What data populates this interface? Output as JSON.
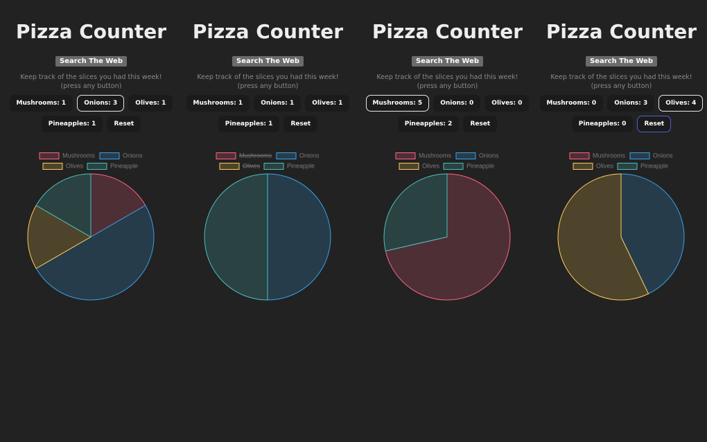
{
  "panels": [
    {
      "title": "Pizza Counter",
      "search_button": "Search The Web",
      "description": "Keep track of the slices you had this week! (press any button)",
      "buttons": [
        "Mushrooms: 1",
        "Onions: 3",
        "Olives: 1",
        "Pineapples: 1"
      ],
      "reset_button": "Reset",
      "chart": {
        "type": "pie",
        "categories": [
          "Mushrooms",
          "Onions",
          "Olives",
          "Pineapple"
        ],
        "values": [
          1,
          3,
          1,
          1
        ],
        "colors": [
          "#ff6384",
          "#36a2eb",
          "#ffcd56",
          "#4bc0c0"
        ],
        "hidden": [
          false,
          false,
          false,
          false
        ]
      }
    },
    {
      "title": "Pizza Counter",
      "search_button": "Search The Web",
      "description": "Keep track of the slices you had this week! (press any button)",
      "buttons": [
        "Mushrooms: 1",
        "Onions: 1",
        "Olives: 1",
        "Pineapples: 1"
      ],
      "reset_button": "Reset",
      "chart": {
        "type": "pie",
        "categories": [
          "Mushrooms",
          "Onions",
          "Olives",
          "Pineapple"
        ],
        "values": [
          1,
          1,
          1,
          1
        ],
        "colors": [
          "#ff6384",
          "#36a2eb",
          "#ffcd56",
          "#4bc0c0"
        ],
        "hidden": [
          true,
          false,
          true,
          false
        ]
      }
    },
    {
      "title": "Pizza Counter",
      "search_button": "Search The Web",
      "description": "Keep track of the slices you had this week! (press any button)",
      "buttons": [
        "Mushrooms: 5",
        "Onions: 0",
        "Olives: 0",
        "Pineapples: 2"
      ],
      "reset_button": "Reset",
      "chart": {
        "type": "pie",
        "categories": [
          "Mushrooms",
          "Onions",
          "Olives",
          "Pineapple"
        ],
        "values": [
          5,
          0,
          0,
          2
        ],
        "colors": [
          "#ff6384",
          "#36a2eb",
          "#ffcd56",
          "#4bc0c0"
        ],
        "hidden": [
          false,
          false,
          false,
          false
        ]
      }
    },
    {
      "title": "Pizza Counter",
      "search_button": "Search The Web",
      "description": "Keep track of the slices you had this week! (press any button)",
      "buttons": [
        "Mushrooms: 0",
        "Onions: 3",
        "Olives: 4",
        "Pineapples: 0"
      ],
      "reset_button": "Reset",
      "chart": {
        "type": "pie",
        "categories": [
          "Mushrooms",
          "Onions",
          "Olives",
          "Pineapple"
        ],
        "values": [
          0,
          3,
          4,
          0
        ],
        "colors": [
          "#ff6384",
          "#36a2eb",
          "#ffcd56",
          "#4bc0c0"
        ],
        "hidden": [
          false,
          false,
          false,
          false
        ]
      }
    }
  ]
}
